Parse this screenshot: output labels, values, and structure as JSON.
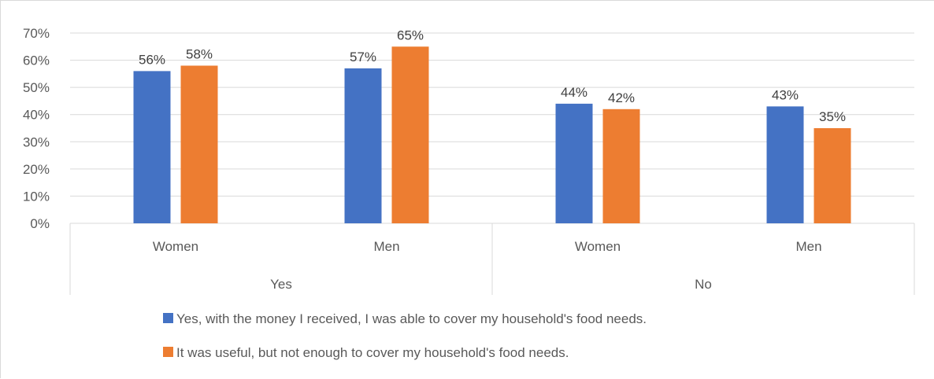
{
  "chart_data": {
    "type": "bar",
    "groups": [
      {
        "label": "Yes",
        "categories": [
          "Women",
          "Men"
        ]
      },
      {
        "label": "No",
        "categories": [
          "Women",
          "Men"
        ]
      }
    ],
    "categories": [
      "Women",
      "Men",
      "Women",
      "Men"
    ],
    "series": [
      {
        "name": "Yes, with the money I received, I was able to cover my household's food needs.",
        "color": "#4472c4",
        "values": [
          56,
          57,
          44,
          43
        ]
      },
      {
        "name": "It was useful, but not enough to cover my household's food needs.",
        "color": "#ed7d31",
        "values": [
          58,
          65,
          42,
          35
        ]
      }
    ],
    "data_labels": [
      [
        "56%",
        "57%",
        "44%",
        "43%"
      ],
      [
        "58%",
        "65%",
        "42%",
        "35%"
      ]
    ],
    "yticks": [
      "0%",
      "10%",
      "20%",
      "30%",
      "40%",
      "50%",
      "60%",
      "70%"
    ],
    "ylim": [
      0,
      70
    ],
    "ylabel_unit": "%",
    "grid": true,
    "legend_position": "bottom",
    "title": "",
    "xlabel": "",
    "ylabel": ""
  }
}
